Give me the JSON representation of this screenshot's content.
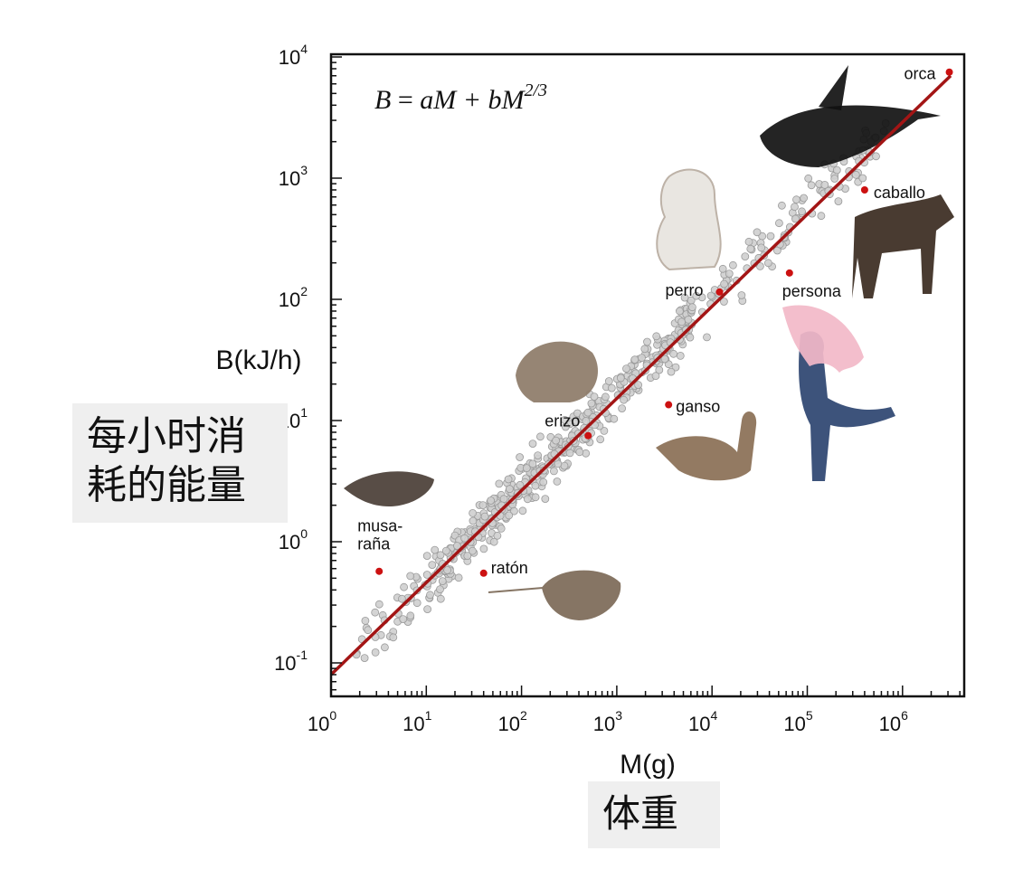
{
  "chart_data": {
    "type": "scatter",
    "title": "",
    "formula": {
      "lhs": "B",
      "rhs": "aM + bM",
      "exp": "2/3"
    },
    "xlabel": "M(g)",
    "ylabel": "B(kJ/h)",
    "xscale": "log",
    "yscale": "log",
    "xlim": [
      1,
      5000000
    ],
    "ylim": [
      0.05,
      12000
    ],
    "x_ticks": [
      {
        "base": "10",
        "exp": "0"
      },
      {
        "base": "10",
        "exp": "1"
      },
      {
        "base": "10",
        "exp": "2"
      },
      {
        "base": "10",
        "exp": "3"
      },
      {
        "base": "10",
        "exp": "4"
      },
      {
        "base": "10",
        "exp": "5"
      },
      {
        "base": "10",
        "exp": "6"
      }
    ],
    "y_ticks": [
      {
        "base": "10",
        "exp": "-1"
      },
      {
        "base": "10",
        "exp": "0"
      },
      {
        "base": "10",
        "exp": "1"
      },
      {
        "base": "10",
        "exp": "2"
      },
      {
        "base": "10",
        "exp": "3"
      },
      {
        "base": "10",
        "exp": "4"
      }
    ],
    "fit_line": {
      "x": [
        1,
        3200000
      ],
      "y": [
        0.08,
        7000
      ],
      "color": "#a31515"
    },
    "highlighted_points": [
      {
        "label": "orca",
        "x": 3100000,
        "y": 7500
      },
      {
        "label": "caballo",
        "x": 400000,
        "y": 800
      },
      {
        "label": "persona",
        "x": 65000,
        "y": 165
      },
      {
        "label": "perro",
        "x": 12000,
        "y": 115
      },
      {
        "label": "ganso",
        "x": 3500,
        "y": 13.5
      },
      {
        "label": "erizo",
        "x": 500,
        "y": 7.5
      },
      {
        "label": "ratón",
        "x": 40,
        "y": 0.55
      },
      {
        "label": "musa-\nraña",
        "x": 3.2,
        "y": 0.57
      }
    ],
    "background_points": {
      "description_count": 600,
      "color": "#c8c8c8",
      "trend": "same as fit line with scatter"
    },
    "grid": false,
    "legend": "none",
    "colors": {
      "points": "#cc1111",
      "line": "#a31515",
      "scatter": "#cfcfcf"
    }
  },
  "annotations": {
    "ylabel_cn": [
      "每小时消",
      "耗的能量"
    ],
    "xlabel_cn": "体重"
  }
}
